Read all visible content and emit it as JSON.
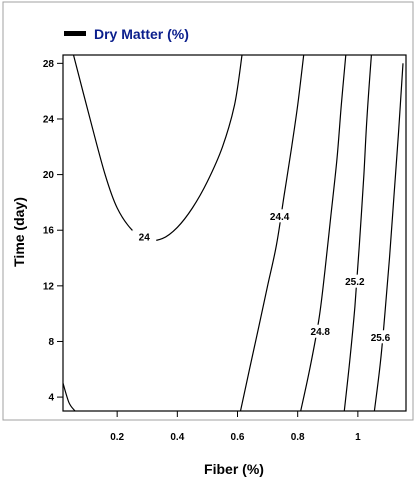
{
  "chart_data": {
    "type": "contour",
    "legend": {
      "label": "Dry Matter (%)",
      "placement": "top-left",
      "color": "#0a1e8c"
    },
    "xlabel": "Fiber (%)",
    "ylabel": "Time (day)",
    "xlim": [
      0.02,
      1.16
    ],
    "ylim": [
      3,
      28.6
    ],
    "xticks": [
      0.2,
      0.4,
      0.6,
      0.8,
      1.0
    ],
    "xtick_labels": [
      "0.2",
      "0.4",
      "0.6",
      "0.8",
      "1"
    ],
    "yticks": [
      4,
      8,
      12,
      16,
      20,
      24,
      28
    ],
    "ytick_labels": [
      "4",
      "8",
      "12",
      "16",
      "20",
      "24",
      "28"
    ],
    "contours": [
      {
        "level": 24,
        "label": "24",
        "label_at": [
          0.29,
          15.5
        ],
        "points": [
          [
            0.055,
            28.6
          ],
          [
            0.11,
            24
          ],
          [
            0.16,
            20
          ],
          [
            0.2,
            17.6
          ],
          [
            0.25,
            16
          ],
          [
            0.3,
            15.3
          ],
          [
            0.35,
            15.4
          ],
          [
            0.4,
            16.2
          ],
          [
            0.45,
            17.6
          ],
          [
            0.5,
            19.5
          ],
          [
            0.55,
            22
          ],
          [
            0.59,
            25
          ],
          [
            0.615,
            28.6
          ]
        ]
      },
      {
        "level": 24,
        "label": "",
        "label_at": null,
        "points": [
          [
            0.02,
            5
          ],
          [
            0.04,
            3.6
          ],
          [
            0.06,
            3
          ]
        ]
      },
      {
        "level": 24.4,
        "label": "24.4",
        "label_at": [
          0.74,
          17
        ],
        "points": [
          [
            0.61,
            3
          ],
          [
            0.64,
            6
          ],
          [
            0.67,
            9
          ],
          [
            0.7,
            12
          ],
          [
            0.73,
            15
          ],
          [
            0.755,
            18.5
          ],
          [
            0.78,
            22
          ],
          [
            0.8,
            25
          ],
          [
            0.82,
            28.6
          ]
        ]
      },
      {
        "level": 24.8,
        "label": "24.8",
        "label_at": [
          0.875,
          8.7
        ],
        "points": [
          [
            0.81,
            3
          ],
          [
            0.84,
            6
          ],
          [
            0.87,
            9.5
          ],
          [
            0.89,
            13
          ],
          [
            0.91,
            17
          ],
          [
            0.93,
            21
          ],
          [
            0.945,
            25
          ],
          [
            0.96,
            28.6
          ]
        ]
      },
      {
        "level": 25.2,
        "label": "25.2",
        "label_at": [
          0.99,
          12.3
        ],
        "points": [
          [
            0.955,
            3
          ],
          [
            0.975,
            7
          ],
          [
            0.99,
            10.5
          ],
          [
            1.005,
            15
          ],
          [
            1.02,
            20
          ],
          [
            1.03,
            24
          ],
          [
            1.045,
            28.6
          ]
        ]
      },
      {
        "level": 25.6,
        "label": "25.6",
        "label_at": [
          1.075,
          8.3
        ],
        "points": [
          [
            1.055,
            3
          ],
          [
            1.075,
            6.5
          ],
          [
            1.09,
            10
          ],
          [
            1.105,
            14
          ],
          [
            1.12,
            18.5
          ],
          [
            1.135,
            23
          ],
          [
            1.15,
            28
          ]
        ]
      }
    ]
  }
}
